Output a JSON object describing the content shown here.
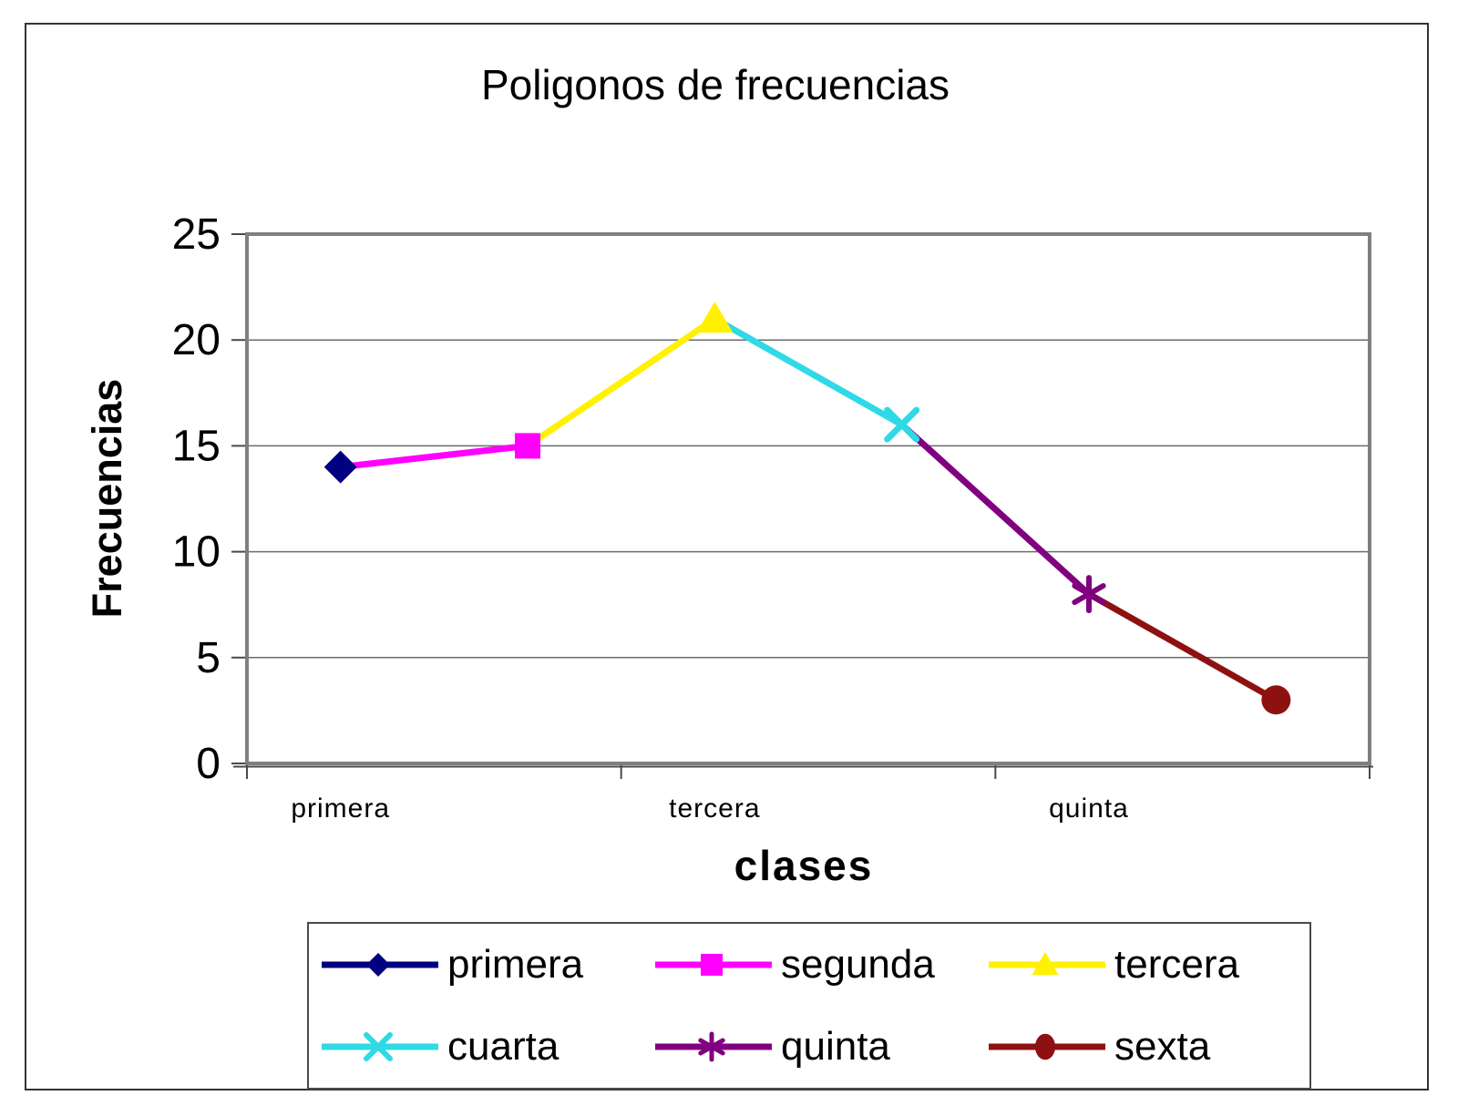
{
  "chart_data": {
    "type": "line",
    "title": "Poligonos de frecuencias",
    "xlabel": "clases",
    "ylabel": "Frecuencias",
    "ylim": [
      0,
      25
    ],
    "ytick_step": 5,
    "ytick_labels": [
      "25",
      "20",
      "15",
      "10",
      "5",
      "0"
    ],
    "grid": "horizontal gridlines on",
    "legend_position": "bottom",
    "categories": [
      "primera",
      "segunda",
      "tercera",
      "cuarta",
      "quinta",
      "sexta"
    ],
    "values": [
      14,
      15,
      21,
      16,
      8,
      3
    ],
    "x_axis_visible_labels": [
      {
        "index": 0,
        "label": "primera"
      },
      {
        "index": 2,
        "label": "tercera"
      },
      {
        "index": 4,
        "label": "quinta"
      }
    ],
    "x_axis_boundary_tick_indices": [
      0,
      2,
      4,
      6
    ],
    "series": [
      {
        "name": "primera",
        "color": "#000080",
        "marker": "diamond",
        "value": 14
      },
      {
        "name": "segunda",
        "color": "#FF00FF",
        "marker": "square",
        "value": 15
      },
      {
        "name": "tercera",
        "color": "#FFF100",
        "marker": "triangle",
        "value": 21
      },
      {
        "name": "cuarta",
        "color": "#2FD9E6",
        "marker": "x",
        "value": 16
      },
      {
        "name": "quinta",
        "color": "#800080",
        "marker": "asterisk",
        "value": 8
      },
      {
        "name": "sexta",
        "color": "#8E1111",
        "marker": "circle",
        "value": 3
      }
    ],
    "legend_rows": [
      [
        "primera",
        "segunda",
        "tercera"
      ],
      [
        "cuarta",
        "quinta",
        "sexta"
      ]
    ]
  },
  "colors": {
    "background": "#FFFFFF",
    "text": "#000000",
    "canvas_border": "#333333",
    "plot_border": "#7F7F7F",
    "axis_dark": "#4A4A4A",
    "gridline": "#6B6B6B"
  }
}
